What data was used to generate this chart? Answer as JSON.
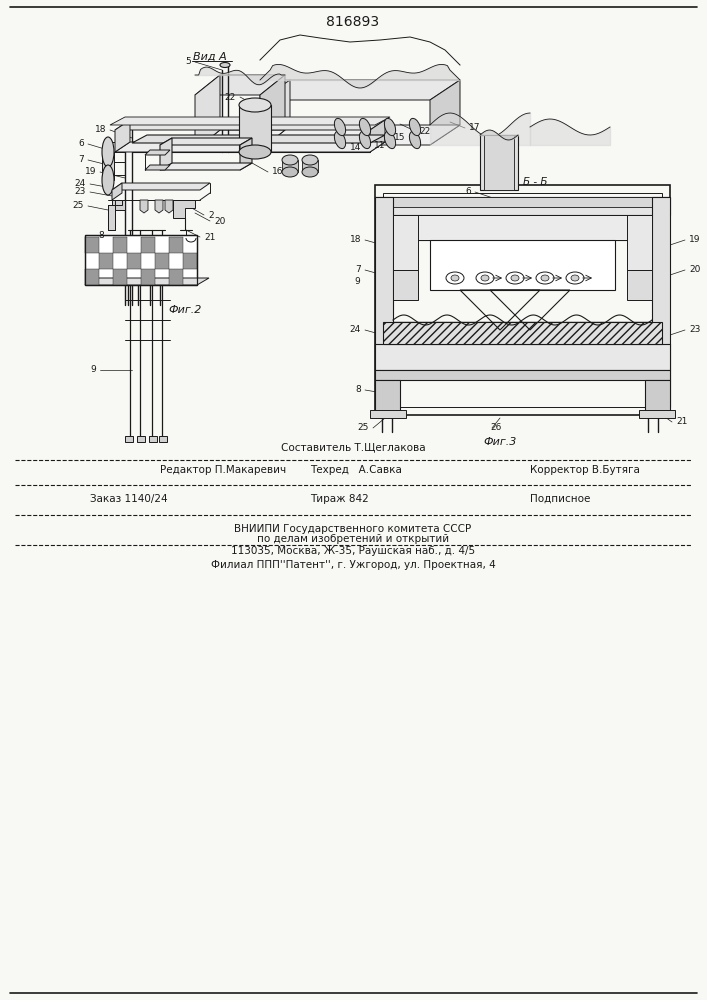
{
  "title_number": "816893",
  "view_label": "Вид А",
  "section_label": "Б - Б",
  "fig2_label": "Фиг.2",
  "fig3_label": "Фиг.3",
  "footer_line1": "Составитель Т.Щеглакова",
  "footer_line2_left": "Редактор П.Макаревич",
  "footer_line2_mid": "Техред   А.Савка",
  "footer_line2_right": "Корректор В.Бутяга",
  "footer_line3_left": "Заказ 1140/24",
  "footer_line3_mid": "Тираж 842",
  "footer_line3_right": "Подписное",
  "footer_line4": "ВНИИПИ Государственного комитета СССР",
  "footer_line5": "по делам изобретений и открытий",
  "footer_line6": "113035, Москва, Ж-35, Раушская наб., д. 4/5",
  "footer_line7": "Филиал ППП''Патент'', г. Ужгород, ул. Проектная, 4",
  "bg_color": "#f8f8f5",
  "line_color": "#1a1a1a",
  "figsize": [
    7.07,
    10.0
  ],
  "dpi": 100
}
